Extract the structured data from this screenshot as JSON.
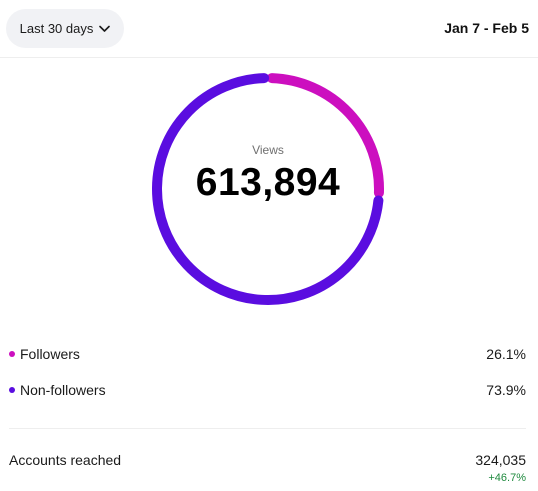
{
  "header": {
    "range_label": "Last 30 days",
    "date_range": "Jan 7 - Feb 5"
  },
  "views": {
    "label": "Views",
    "value": "613,894"
  },
  "breakdown": [
    {
      "label": "Followers",
      "percent": "26.1%",
      "fraction": 0.261,
      "color": "#cc0fbf"
    },
    {
      "label": "Non-followers",
      "percent": "73.9%",
      "fraction": 0.739,
      "color": "#5a0de0"
    }
  ],
  "accounts_reached": {
    "label": "Accounts reached",
    "value": "324,035",
    "change": "+46.7%",
    "change_color": "#1f8a3e"
  },
  "icons": {
    "range_dropdown": "chevron-down-icon"
  }
}
